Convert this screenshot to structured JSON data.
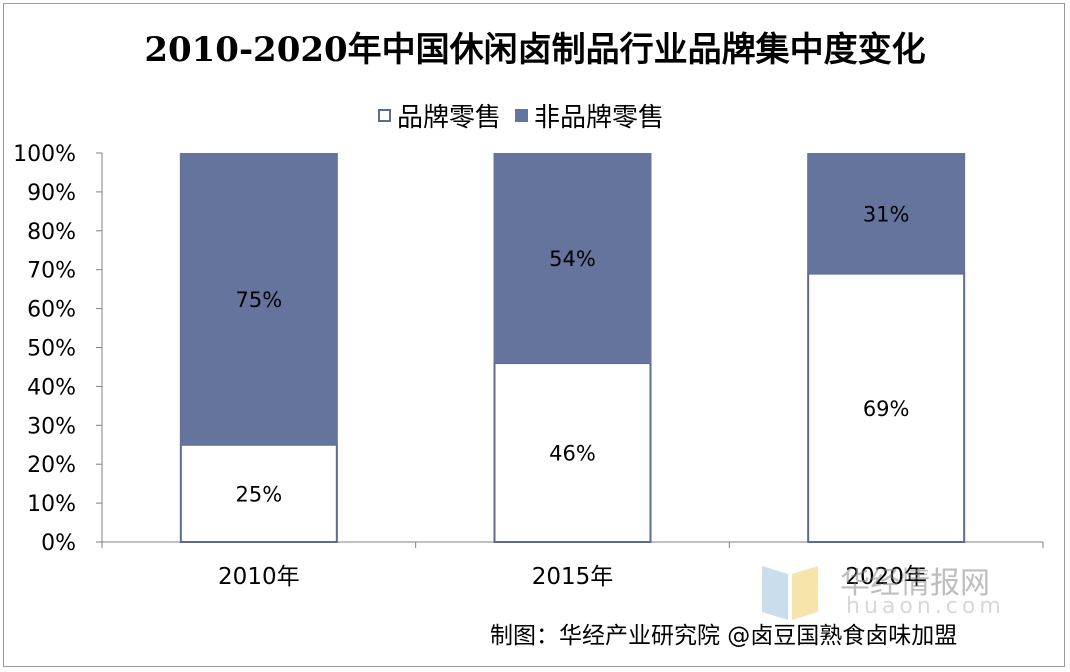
{
  "title": "2010-2020年中国休闲卤制品行业品牌集中度变化",
  "legend": {
    "brand": "品牌零售",
    "nonbrand": "非品牌零售"
  },
  "colors": {
    "brand": "#ffffff",
    "nonbrand": "#64749c",
    "axis": "#808080"
  },
  "chart_data": {
    "type": "bar",
    "stacked": true,
    "percent_stacked": true,
    "title": "2010-2020年中国休闲卤制品行业品牌集中度变化",
    "categories": [
      "2010年",
      "2015年",
      "2020年"
    ],
    "series": [
      {
        "name": "品牌零售",
        "values": [
          25,
          46,
          69
        ],
        "labels": [
          "25%",
          "46%",
          "69%"
        ]
      },
      {
        "name": "非品牌零售",
        "values": [
          75,
          54,
          31
        ],
        "labels": [
          "75%",
          "54%",
          "31%"
        ]
      }
    ],
    "ylim": [
      0,
      100
    ],
    "yticks": [
      "0%",
      "10%",
      "20%",
      "30%",
      "40%",
      "50%",
      "60%",
      "70%",
      "80%",
      "90%",
      "100%"
    ],
    "xlabel": "",
    "ylabel": "",
    "grid": false,
    "legend_position": "top"
  },
  "source": "制图：华经产业研究院 @卤豆国熟食卤味加盟",
  "watermark": {
    "cn": "华经情报网",
    "en": "huaon.com"
  }
}
